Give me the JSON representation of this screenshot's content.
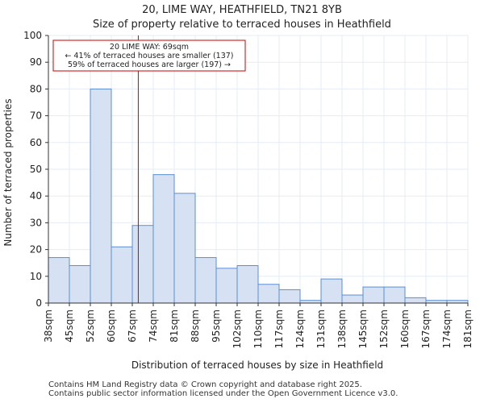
{
  "title_line1": "20, LIME WAY, HEATHFIELD, TN21 8YB",
  "title_line2": "Size of property relative to terraced houses in Heathfield",
  "footer_line1": "Contains HM Land Registry data © Crown copyright and database right 2025.",
  "footer_line2": "Contains public sector information licensed under the Open Government Licence v3.0.",
  "colors": {
    "bar_fill": "#d6e2f3",
    "bar_stroke": "#5b8ed0",
    "marker": "#cc0000",
    "annotation_border": "#cc0000",
    "grid": "#e6ecf5"
  },
  "chart_data": {
    "type": "bar",
    "xlabel": "Distribution of terraced houses by size in Heathfield",
    "ylabel": "Number of terraced properties",
    "ylim": [
      0,
      100
    ],
    "yticks": [
      0,
      10,
      20,
      30,
      40,
      50,
      60,
      70,
      80,
      90,
      100
    ],
    "grid": true,
    "bin_labels": [
      "38sqm",
      "45sqm",
      "52sqm",
      "60sqm",
      "67sqm",
      "74sqm",
      "81sqm",
      "88sqm",
      "95sqm",
      "102sqm",
      "110sqm",
      "117sqm",
      "124sqm",
      "131sqm",
      "138sqm",
      "145sqm",
      "152sqm",
      "160sqm",
      "167sqm",
      "174sqm",
      "181sqm"
    ],
    "values": [
      17,
      14,
      80,
      21,
      29,
      48,
      41,
      17,
      13,
      14,
      7,
      5,
      1,
      9,
      3,
      6,
      6,
      2,
      1,
      1
    ],
    "marker_value": 69,
    "annotation": {
      "line1": "20 LIME WAY: 69sqm",
      "line2": "← 41% of terraced houses are smaller (137)",
      "line3": "59% of terraced houses are larger (197) →"
    }
  }
}
